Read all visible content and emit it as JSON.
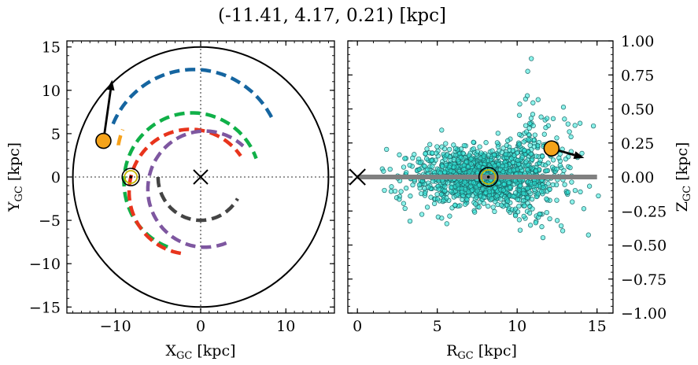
{
  "title": "(-11.41, 4.17, 0.21) [kpc]",
  "chart_data": [
    {
      "type": "scatter",
      "panel": "left",
      "xlabel_main": "X",
      "xlabel_sub": "GC",
      "xlabel_unit": " [kpc]",
      "ylabel_main": "Y",
      "ylabel_sub": "GC",
      "ylabel_unit": " [kpc]",
      "xlim": [
        -15.7,
        15.7
      ],
      "ylim": [
        -15.7,
        15.7
      ],
      "xticks": [
        -10,
        0,
        10
      ],
      "yticks": [
        -15,
        -10,
        -5,
        0,
        5,
        10,
        15
      ],
      "x_tick_labels": [
        "−10",
        "0",
        "10"
      ],
      "y_tick_labels": [
        "−15",
        "−10",
        "−5",
        "0",
        "5",
        "10",
        "15"
      ],
      "boundary_circle_radius": 15,
      "galactic_center": [
        0,
        0
      ],
      "sun": [
        -8.2,
        0
      ],
      "star": {
        "x": -11.41,
        "y": 4.17
      },
      "velocity_arrow_tip": [
        -10.4,
        11.2
      ],
      "arms": [
        {
          "color": "#1565a0",
          "radius": 10.3,
          "ang_start": 157,
          "ang_end": 25
        },
        {
          "color": "#f7a11a",
          "radius": 9.0,
          "ang_start": 170,
          "ang_end": 158
        },
        {
          "color": "#10b048",
          "radius": 8.0,
          "ang_start": 249,
          "ang_end": 20
        },
        {
          "color": "#e8341c",
          "radius": 7.2,
          "ang_start": 261,
          "ang_end": 35
        },
        {
          "color": "#7e57a0",
          "radius": 6.7,
          "ang_start": 292,
          "ang_end": 48
        },
        {
          "color": "#444444",
          "radius": 5.0,
          "ang_start": 180,
          "ang_end": 330
        }
      ],
      "arm_centers": [
        [
          -0.8,
          2.1
        ],
        [
          -0.8,
          2.1
        ],
        [
          -1.0,
          -0.6
        ],
        [
          -1.2,
          -1.7
        ],
        [
          0.5,
          -1.4
        ],
        [
          0,
          0
        ]
      ]
    },
    {
      "type": "scatter",
      "panel": "right",
      "xlabel_main": "R",
      "xlabel_sub": "GC",
      "xlabel_unit": " [kpc]",
      "ylabel_main": "Z",
      "ylabel_sub": "GC",
      "ylabel_unit": " [kpc]",
      "xlim": [
        -0.6,
        16
      ],
      "ylim": [
        -1.0,
        1.0
      ],
      "xticks": [
        0,
        5,
        10,
        15
      ],
      "yticks": [
        1.0,
        0.75,
        0.5,
        0.25,
        0.0,
        -0.25,
        -0.5,
        -0.75,
        -1.0
      ],
      "x_tick_labels": [
        "0",
        "5",
        "10",
        "15"
      ],
      "y_tick_labels": [
        "1.00",
        "0.75",
        "0.50",
        "0.25",
        "0.00",
        "−0.25",
        "−0.50",
        "−0.75",
        "−1.00"
      ],
      "galactic_center": [
        0,
        0
      ],
      "sun": [
        8.2,
        0
      ],
      "disk_line": [
        0,
        15
      ],
      "star": {
        "x": 12.15,
        "y": 0.21
      },
      "velocity_arrow_tip": [
        14.2,
        0.14
      ],
      "point_cloud": {
        "count": 1500,
        "point_color": "#2ee8d8",
        "edge_color": "#1c6a6a",
        "bulk_center": [
          8.2,
          0.0
        ],
        "sigma_r": 2.3,
        "sigma_z": 0.09
      }
    }
  ]
}
